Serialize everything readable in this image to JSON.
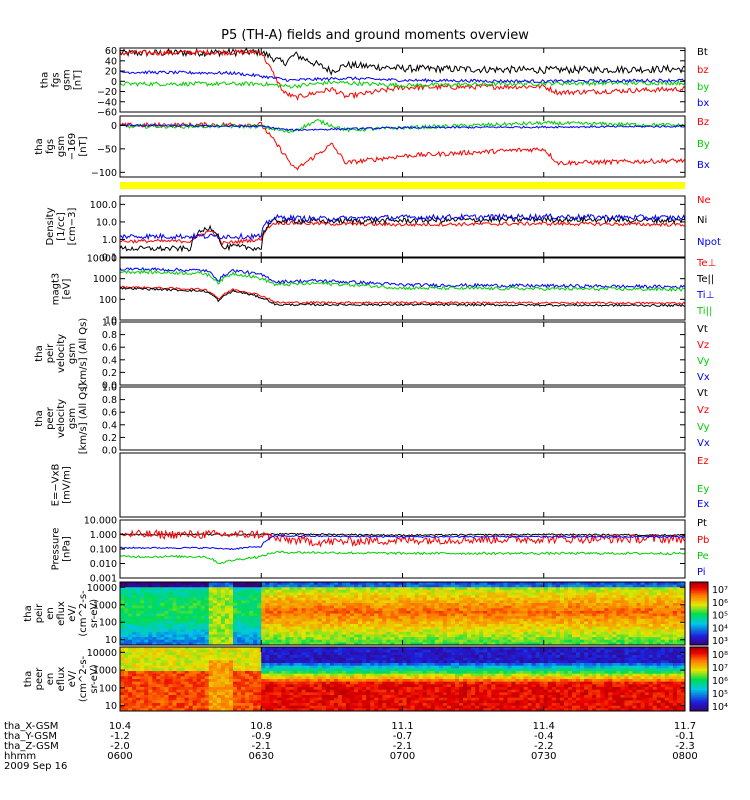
{
  "title": "P5 (TH-A) fields and ground moments overview",
  "colors": {
    "black": "#000000",
    "red": "#ff0000",
    "green": "#00d000",
    "blue": "#0000ff",
    "yellow": "#ffff00"
  },
  "x_axis": {
    "time_ticks": [
      "0600",
      "0630",
      "0700",
      "0730",
      "0800"
    ],
    "rows": [
      {
        "label": "tha_X-GSM",
        "values": [
          "10.4",
          "10.8",
          "11.1",
          "11.4",
          "11.7"
        ]
      },
      {
        "label": "tha_Y-GSM",
        "values": [
          "-1.2",
          "-0.9",
          "-0.7",
          "-0.4",
          "-0.1"
        ]
      },
      {
        "label": "tha_Z-GSM",
        "values": [
          "-2.0",
          "-2.1",
          "-2.1",
          "-2.2",
          "-2.3"
        ]
      },
      {
        "label": "hhmm",
        "values": [
          "0600",
          "0630",
          "0700",
          "0730",
          "0800"
        ]
      }
    ],
    "date": "2009 Sep 16"
  },
  "chart_data": [
    {
      "id": "fgs",
      "type": "line",
      "ylabel": [
        "tha",
        "fgs",
        "gsm",
        "[nT]"
      ],
      "ylim": [
        -60,
        65
      ],
      "yticks": [
        {
          "v": 60,
          "t": "60"
        },
        {
          "v": 40,
          "t": "40"
        },
        {
          "v": 20,
          "t": "20"
        },
        {
          "v": 0,
          "t": "0"
        },
        {
          "v": -20,
          "t": "−20"
        },
        {
          "v": -40,
          "t": "−40"
        },
        {
          "v": -60,
          "t": "−60"
        }
      ],
      "series": [
        {
          "name": "Bt",
          "color": "#000000",
          "x": [
            6.0,
            6.5,
            6.58,
            6.62,
            6.75,
            6.8,
            7.0,
            7.5,
            8.0
          ],
          "y": [
            55,
            57,
            35,
            52,
            20,
            32,
            25,
            22,
            24
          ],
          "noise": 7
        },
        {
          "name": "bz",
          "color": "#ff0000",
          "x": [
            6.0,
            6.5,
            6.58,
            6.62,
            6.75,
            6.8,
            7.0,
            7.5,
            7.55,
            8.0
          ],
          "y": [
            55,
            57,
            -22,
            -32,
            -15,
            -30,
            -12,
            -10,
            -22,
            -15
          ],
          "noise": 5
        },
        {
          "name": "by",
          "color": "#00d000",
          "x": [
            6.0,
            6.5,
            6.6,
            6.75,
            7.0,
            7.5,
            8.0
          ],
          "y": [
            -5,
            -5,
            -10,
            -2,
            -8,
            -4,
            -3
          ],
          "noise": 4
        },
        {
          "name": "bx",
          "color": "#0000ff",
          "x": [
            6.0,
            6.4,
            6.5,
            6.6,
            6.8,
            7.0,
            7.5,
            8.0
          ],
          "y": [
            18,
            16,
            10,
            2,
            6,
            2,
            0,
            2
          ],
          "noise": 3
        }
      ]
    },
    {
      "id": "fgs_r",
      "type": "line",
      "ylabel": [
        "tha",
        "fgs",
        "gsm",
        "−169",
        "[nT]"
      ],
      "ylim": [
        -110,
        20
      ],
      "yticks": [
        {
          "v": 0,
          "t": "0"
        },
        {
          "v": -50,
          "t": "−50"
        },
        {
          "v": -100,
          "t": "−100"
        }
      ],
      "series": [
        {
          "name": "Bz",
          "color": "#ff0000",
          "x": [
            6.0,
            6.5,
            6.58,
            6.62,
            6.75,
            6.8,
            7.0,
            7.5,
            7.55,
            8.0
          ],
          "y": [
            0,
            2,
            -60,
            -95,
            -40,
            -80,
            -65,
            -50,
            -80,
            -75
          ],
          "noise": 5
        },
        {
          "name": "By",
          "color": "#00d000",
          "x": [
            6.0,
            6.5,
            6.6,
            6.7,
            6.8,
            7.0,
            7.5,
            8.0
          ],
          "y": [
            -2,
            -2,
            -15,
            10,
            -10,
            -5,
            5,
            0
          ],
          "noise": 4
        },
        {
          "name": "Bx",
          "color": "#0000ff",
          "x": [
            6.0,
            6.5,
            6.6,
            7.0,
            8.0
          ],
          "y": [
            0,
            -2,
            -10,
            -5,
            -2
          ],
          "noise": 2
        }
      ]
    },
    {
      "id": "density",
      "type": "line",
      "log": true,
      "ylabel": [
        "Density",
        "[1/cc]",
        "[cm−3]"
      ],
      "ylim": [
        0.1,
        300
      ],
      "yticks": [
        {
          "v": 100,
          "t": "100.0"
        },
        {
          "v": 10,
          "t": "10.0"
        },
        {
          "v": 1,
          "t": "1.0"
        },
        {
          "v": 0.1,
          "t": "0.1"
        }
      ],
      "series": [
        {
          "name": "Ne",
          "color": "#ff0000",
          "x": [
            6.0,
            6.25,
            6.32,
            6.36,
            6.4,
            6.5,
            6.55,
            6.7,
            7.0,
            7.5,
            8.0
          ],
          "y": [
            0.8,
            0.8,
            3,
            0.6,
            0.7,
            1,
            9,
            8,
            7,
            8,
            7
          ],
          "noise": 0.1
        },
        {
          "name": "Ni",
          "color": "#000000",
          "x": [
            6.0,
            6.25,
            6.32,
            6.36,
            6.4,
            6.5,
            6.55,
            6.7,
            7.0,
            7.5,
            8.0
          ],
          "y": [
            0.3,
            0.3,
            5,
            0.3,
            0.4,
            0.3,
            12,
            11,
            12,
            14,
            12
          ],
          "noise": 0.15
        },
        {
          "name": "Npot",
          "color": "#0000ff",
          "x": [
            6.0,
            6.5,
            6.55,
            6.7,
            7.0,
            7.5,
            8.0
          ],
          "y": [
            1.5,
            1.5,
            18,
            15,
            18,
            20,
            17
          ],
          "noise": 0.15
        }
      ]
    },
    {
      "id": "temp",
      "type": "line",
      "log": true,
      "ylabel": [
        "magt3",
        "[eV]"
      ],
      "ylim": [
        10,
        10000
      ],
      "yticks": [
        {
          "v": 10000,
          "t": "10000"
        },
        {
          "v": 1000,
          "t": "1000"
        },
        {
          "v": 100,
          "t": "100"
        },
        {
          "v": 10,
          "t": "10"
        }
      ],
      "series": [
        {
          "name": "Te⊥",
          "color": "#ff0000",
          "x": [
            6.0,
            6.3,
            6.35,
            6.4,
            6.5,
            6.55,
            7.0,
            8.0
          ],
          "y": [
            400,
            300,
            100,
            300,
            150,
            70,
            70,
            65
          ],
          "noise": 0.05
        },
        {
          "name": "Te||",
          "color": "#000000",
          "x": [
            6.0,
            6.3,
            6.35,
            6.4,
            6.5,
            6.55,
            7.0,
            8.0
          ],
          "y": [
            350,
            250,
            80,
            250,
            120,
            55,
            55,
            50
          ],
          "noise": 0.05
        },
        {
          "name": "Ti⊥",
          "color": "#0000ff",
          "x": [
            6.0,
            6.3,
            6.35,
            6.4,
            6.5,
            6.55,
            6.7,
            7.0,
            8.0
          ],
          "y": [
            3000,
            2500,
            800,
            2500,
            1500,
            700,
            800,
            500,
            400
          ],
          "noise": 0.08
        },
        {
          "name": "Ti||",
          "color": "#00d000",
          "x": [
            6.0,
            6.3,
            6.35,
            6.4,
            6.5,
            6.55,
            6.7,
            7.0,
            8.0
          ],
          "y": [
            2200,
            1800,
            600,
            1800,
            1000,
            500,
            600,
            350,
            300
          ],
          "noise": 0.08
        }
      ]
    },
    {
      "id": "peir_v",
      "type": "line",
      "ylabel": [
        "tha",
        "peir",
        "velocity",
        "gsm",
        "[km/s] (All Qs)"
      ],
      "ylim": [
        0,
        1
      ],
      "yticks": [
        {
          "v": 1,
          "t": "1.0"
        },
        {
          "v": 0.8,
          "t": "0.8"
        },
        {
          "v": 0.6,
          "t": "0.6"
        },
        {
          "v": 0.4,
          "t": "0.4"
        },
        {
          "v": 0.2,
          "t": "0.2"
        },
        {
          "v": 0,
          "t": "0.0"
        }
      ],
      "series": [
        {
          "name": "Vt",
          "color": "#000000",
          "x": [],
          "y": []
        },
        {
          "name": "Vz",
          "color": "#ff0000",
          "x": [],
          "y": []
        },
        {
          "name": "Vy",
          "color": "#00d000",
          "x": [],
          "y": []
        },
        {
          "name": "Vx",
          "color": "#0000ff",
          "x": [],
          "y": []
        }
      ]
    },
    {
      "id": "peer_v",
      "type": "line",
      "ylabel": [
        "tha",
        "peer",
        "velocity",
        "gsm",
        "[km/s] (All Qs)"
      ],
      "ylim": [
        0,
        1
      ],
      "yticks": [
        {
          "v": 1,
          "t": "1.0"
        },
        {
          "v": 0.8,
          "t": "0.8"
        },
        {
          "v": 0.6,
          "t": "0.6"
        },
        {
          "v": 0.4,
          "t": "0.4"
        },
        {
          "v": 0.2,
          "t": "0.2"
        },
        {
          "v": 0,
          "t": "0.0"
        }
      ],
      "series": [
        {
          "name": "Vt",
          "color": "#000000",
          "x": [],
          "y": []
        },
        {
          "name": "Vz",
          "color": "#ff0000",
          "x": [],
          "y": []
        },
        {
          "name": "Vy",
          "color": "#00d000",
          "x": [],
          "y": []
        },
        {
          "name": "Vx",
          "color": "#0000ff",
          "x": [],
          "y": []
        }
      ]
    },
    {
      "id": "efield",
      "type": "line",
      "ylabel": [
        "E=−VxB",
        "[mV/m]"
      ],
      "ylim": [
        0,
        1
      ],
      "yticks": [],
      "series": [
        {
          "name": "Ez",
          "color": "#ff0000",
          "x": [],
          "y": []
        },
        {
          "name": "Ey",
          "color": "#00d000",
          "x": [],
          "y": []
        },
        {
          "name": "Ex",
          "color": "#0000ff",
          "x": [],
          "y": []
        }
      ]
    },
    {
      "id": "pressure",
      "type": "line",
      "log": true,
      "ylabel": [
        "Pressure",
        "[nPa]"
      ],
      "ylim": [
        0.001,
        10
      ],
      "yticks": [
        {
          "v": 10,
          "t": "10.000"
        },
        {
          "v": 1,
          "t": "1.000"
        },
        {
          "v": 0.1,
          "t": "0.100"
        },
        {
          "v": 0.01,
          "t": "0.010"
        },
        {
          "v": 0.001,
          "t": "0.001"
        }
      ],
      "series": [
        {
          "name": "Pt",
          "color": "#000000",
          "x": [
            6.0,
            6.5,
            6.55,
            7.0,
            7.5,
            8.0
          ],
          "y": [
            1.0,
            1.0,
            1.1,
            0.9,
            1.0,
            0.9
          ],
          "noise": 0.05
        },
        {
          "name": "Pb",
          "color": "#ff0000",
          "x": [
            6.0,
            6.5,
            6.55,
            6.7,
            7.0,
            7.5,
            8.0
          ],
          "y": [
            1.0,
            1.0,
            0.5,
            0.3,
            0.4,
            0.5,
            0.5
          ],
          "noise": 0.3
        },
        {
          "name": "Pe",
          "color": "#00d000",
          "x": [
            6.0,
            6.3,
            6.35,
            6.5,
            6.55,
            7.0,
            8.0
          ],
          "y": [
            0.03,
            0.03,
            0.01,
            0.03,
            0.06,
            0.05,
            0.05
          ],
          "noise": 0.08
        },
        {
          "name": "Pi",
          "color": "#0000ff",
          "x": [
            6.0,
            6.3,
            6.4,
            6.5,
            6.55,
            7.0,
            8.0
          ],
          "y": [
            0.12,
            0.12,
            0.1,
            0.15,
            0.8,
            0.7,
            0.7
          ],
          "noise": 0.05
        }
      ]
    },
    {
      "id": "peir_spec",
      "type": "heatmap",
      "ylabel": [
        "tha",
        "peir",
        "en",
        "eflux",
        "eV/",
        "(cm^2-s-",
        "sr-eV)"
      ],
      "log": true,
      "ylim": [
        5,
        20000
      ],
      "yticks": [
        {
          "v": 10000,
          "t": "10000"
        },
        {
          "v": 1000,
          "t": "1000"
        },
        {
          "v": 100,
          "t": "100"
        },
        {
          "v": 10,
          "t": "10"
        }
      ],
      "colorbar_ticks": [
        "10⁷",
        "10⁶",
        "10⁵",
        "10⁴",
        "10³"
      ],
      "colorbar_range": [
        3,
        7
      ]
    },
    {
      "id": "peer_spec",
      "type": "heatmap",
      "ylabel": [
        "tha",
        "peer",
        "en",
        "eflux",
        "eV/",
        "(cm^2-s-",
        "sr-eV)"
      ],
      "log": true,
      "ylim": [
        5,
        20000
      ],
      "yticks": [
        {
          "v": 10000,
          "t": "10000"
        },
        {
          "v": 1000,
          "t": "1000"
        },
        {
          "v": 100,
          "t": "100"
        },
        {
          "v": 10,
          "t": "10"
        }
      ],
      "colorbar_ticks": [
        "10⁸",
        "10⁷",
        "10⁶",
        "10⁵",
        "10⁴"
      ],
      "colorbar_range": [
        4,
        8
      ]
    }
  ]
}
